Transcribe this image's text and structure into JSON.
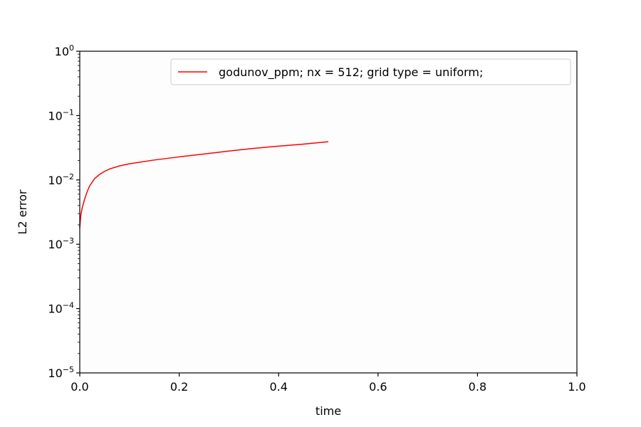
{
  "chart_data": {
    "type": "line",
    "title": "",
    "xlabel": "time",
    "ylabel": "L2 error",
    "xlim": [
      0.0,
      1.0
    ],
    "ylim": [
      1e-05,
      1.0
    ],
    "yscale": "log",
    "grid": false,
    "legend_position": "upper-right",
    "x_ticks": [
      {
        "value": 0.0,
        "label": "0.0"
      },
      {
        "value": 0.2,
        "label": "0.2"
      },
      {
        "value": 0.4,
        "label": "0.4"
      },
      {
        "value": 0.6,
        "label": "0.6"
      },
      {
        "value": 0.8,
        "label": "0.8"
      },
      {
        "value": 1.0,
        "label": "1.0"
      }
    ],
    "y_ticks": [
      {
        "value": 1e-05,
        "base": "10",
        "exp": "−5"
      },
      {
        "value": 0.0001,
        "base": "10",
        "exp": "−4"
      },
      {
        "value": 0.001,
        "base": "10",
        "exp": "−3"
      },
      {
        "value": 0.01,
        "base": "10",
        "exp": "−2"
      },
      {
        "value": 0.1,
        "base": "10",
        "exp": "−1"
      },
      {
        "value": 1.0,
        "base": "10",
        "exp": "0"
      }
    ],
    "series": [
      {
        "name": "godunov_ppm; nx = 512; grid type = uniform;",
        "color": "#ff0000",
        "x": [
          0.0,
          0.002,
          0.005,
          0.01,
          0.015,
          0.02,
          0.03,
          0.04,
          0.05,
          0.06,
          0.08,
          0.1,
          0.15,
          0.2,
          0.25,
          0.3,
          0.35,
          0.4,
          0.45,
          0.5
        ],
        "y": [
          0.0018,
          0.0028,
          0.0037,
          0.0051,
          0.0066,
          0.0081,
          0.0105,
          0.0122,
          0.0136,
          0.0148,
          0.0165,
          0.0178,
          0.0204,
          0.0228,
          0.0253,
          0.0281,
          0.0309,
          0.0335,
          0.036,
          0.0392
        ]
      }
    ]
  }
}
